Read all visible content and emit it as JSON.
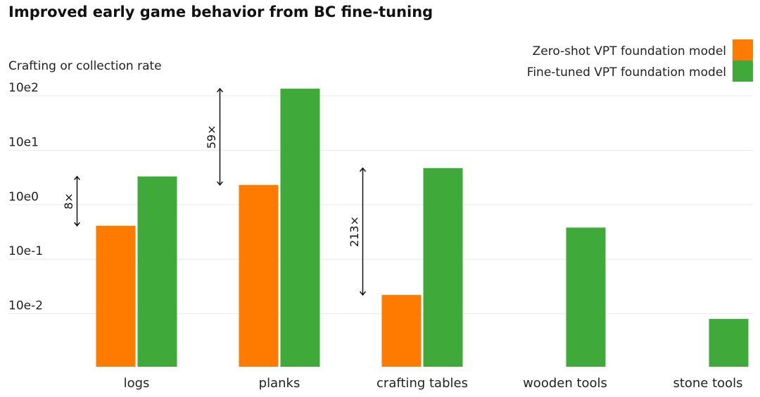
{
  "chart_data": {
    "type": "bar",
    "title": "Improved early game behavior from BC fine-tuning",
    "ylabel": "Crafting or collection rate",
    "xlabel": "",
    "y_scale": "log",
    "ylim": [
      0.0015,
      140
    ],
    "y_ticks": [
      {
        "value": 100,
        "label": "10e2"
      },
      {
        "value": 10,
        "label": "10e1"
      },
      {
        "value": 1,
        "label": "10e0"
      },
      {
        "value": 0.1,
        "label": "10e-1"
      },
      {
        "value": 0.01,
        "label": "10e-2"
      }
    ],
    "grid": true,
    "legend_position": "top-right",
    "categories": [
      "logs",
      "planks",
      "crafting tables",
      "wooden tools",
      "stone tools"
    ],
    "series": [
      {
        "name": "Zero-shot VPT foundation model",
        "color": "#FF7B00",
        "values": [
          0.41,
          2.3,
          0.022,
          null,
          null
        ]
      },
      {
        "name": "Fine-tuned VPT foundation model",
        "color": "#3FAA3A",
        "values": [
          3.3,
          135,
          4.7,
          0.38,
          0.008
        ]
      }
    ],
    "annotations": [
      {
        "category_index": 0,
        "label": "8×"
      },
      {
        "category_index": 1,
        "label": "59×"
      },
      {
        "category_index": 2,
        "label": "213×"
      }
    ]
  }
}
